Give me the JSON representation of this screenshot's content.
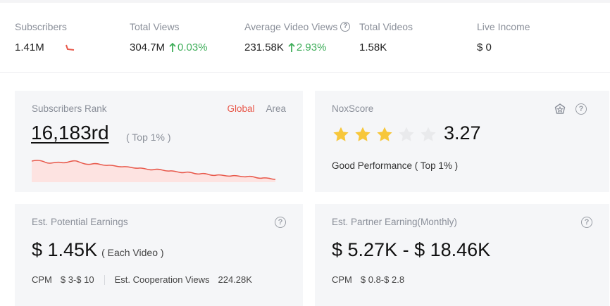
{
  "stats": {
    "subscribers": {
      "label": "Subscribers",
      "value": "1.41M"
    },
    "total_views": {
      "label": "Total Views",
      "value": "304.7M",
      "change": "0.03%"
    },
    "avg_views": {
      "label": "Average Video Views",
      "value": "231.58K",
      "change": "2.93%"
    },
    "total_videos": {
      "label": "Total Videos",
      "value": "1.58K"
    },
    "live_income": {
      "label": "Live Income",
      "value": "$ 0"
    }
  },
  "rank_card": {
    "title": "Subscribers Rank",
    "tab_global": "Global",
    "tab_area": "Area",
    "rank": "16,183rd",
    "note": "( Top 1% )"
  },
  "nox_card": {
    "title": "NoxScore",
    "score": "3.27",
    "stars_filled": 3,
    "stars_total": 5,
    "performance": "Good Performance ( Top 1% )"
  },
  "potential_card": {
    "title": "Est. Potential Earnings",
    "value": "$ 1.45K",
    "note": "( Each Video )",
    "cpm_label": "CPM",
    "cpm_value": "$ 3-$ 10",
    "coop_label": "Est. Cooperation Views",
    "coop_value": "224.28K"
  },
  "partner_card": {
    "title": "Est. Partner Earning(Monthly)",
    "value": "$ 5.27K - $ 18.46K",
    "cpm_label": "CPM",
    "cpm_value": "$ 0.8-$ 2.8"
  },
  "colors": {
    "accent_red": "#e8584a",
    "up_green": "#3fae5a",
    "star_gold": "#f7c73b",
    "card_bg": "#f5f6f8"
  }
}
